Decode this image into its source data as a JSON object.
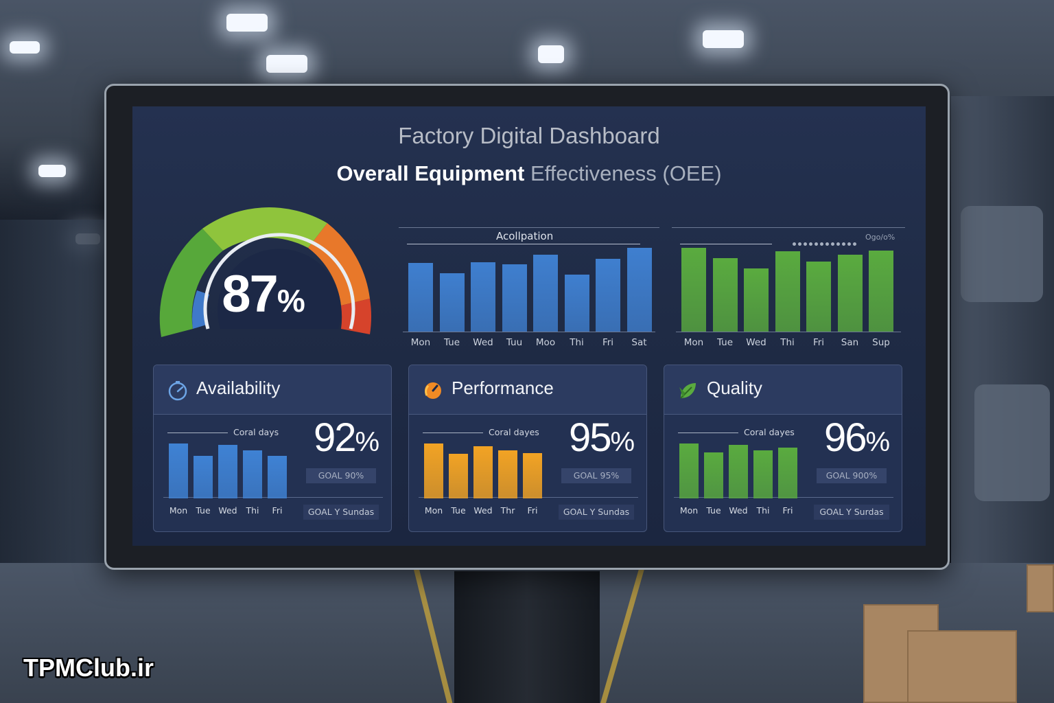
{
  "header": {
    "title": "Factory Digital Dashboard",
    "subtitle_main": "Overall Equipment",
    "subtitle_rest": "Effectiveness (OEE)"
  },
  "gauge": {
    "value_number": "87",
    "value_unit": "%",
    "level": 0.87,
    "colors": [
      "#57a83a",
      "#8fc43c",
      "#e8782a",
      "#d6432b"
    ]
  },
  "weekly_charts": [
    {
      "label": "Acollpation",
      "corner_label": "",
      "color": "#3f7fcf",
      "days": [
        "Mon",
        "Tue",
        "Wed",
        "Tuu",
        "Moo",
        "Thi",
        "Fri",
        "Sat"
      ],
      "values": [
        0.82,
        0.7,
        0.83,
        0.8,
        0.92,
        0.68,
        0.87,
        1.0
      ]
    },
    {
      "label": "",
      "corner_label": "Ogo/o%",
      "color": "#5aab3f",
      "days": [
        "Mon",
        "Tue",
        "Wed",
        "Thi",
        "Fri",
        "San",
        "Sup"
      ],
      "values": [
        1.0,
        0.88,
        0.75,
        0.96,
        0.84,
        0.92,
        0.97
      ]
    }
  ],
  "cards": [
    {
      "title": "Availability",
      "icon": "gauge-icon",
      "goal_days": "Coral days",
      "value": "92",
      "unit": "%",
      "goal": "GOAL 90%",
      "goal_sunday": "GOAL Y Sundas",
      "color": "#3f82d4",
      "days": [
        "Mon",
        "Tue",
        "Wed",
        "Thi",
        "Fri"
      ],
      "values": [
        1.0,
        0.77,
        0.97,
        0.87,
        0.78
      ]
    },
    {
      "title": "Performance",
      "icon": "speed-icon",
      "goal_days": "Coral dayes",
      "value": "95",
      "unit": "%",
      "goal": "GOAL 95%",
      "goal_sunday": "GOAL Y Sundas",
      "color": "#f2a324",
      "days": [
        "Mon",
        "Tue",
        "Wed",
        "Thr",
        "Fri"
      ],
      "values": [
        1.0,
        0.81,
        0.95,
        0.87,
        0.83
      ]
    },
    {
      "title": "Quality",
      "icon": "leaf-icon",
      "goal_days": "Coral dayes",
      "value": "96",
      "unit": "%",
      "goal": "GOAL 900%",
      "goal_sunday": "GOAL Y Surdas",
      "color": "#5aab3f",
      "days": [
        "Mon",
        "Tue",
        "Wed",
        "Thi",
        "Fri"
      ],
      "values": [
        1.0,
        0.84,
        0.97,
        0.88,
        0.93
      ]
    }
  ],
  "watermark": "TPMClub.ir"
}
